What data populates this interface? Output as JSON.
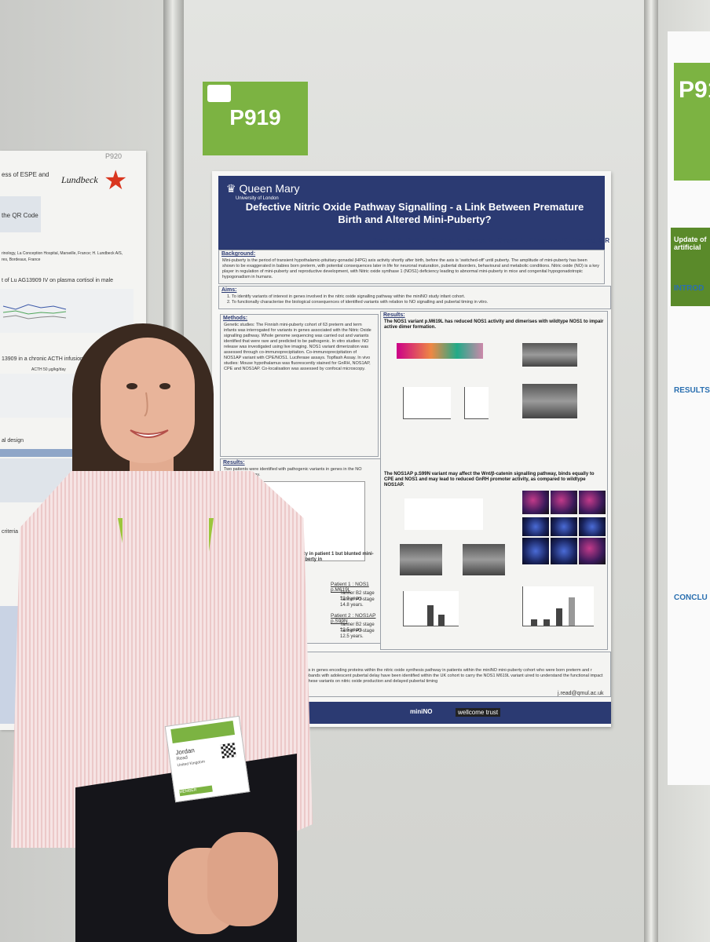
{
  "tag": {
    "label": "P919"
  },
  "left_poster": {
    "id": "P920",
    "logo": "Lundbeck",
    "lines": [
      "ess of ESPE and",
      "the QR Code",
      "rinology, La Conception Hospital, Marseille, France; H. Lundbeck A/S,",
      "res, Bordeaux, France",
      "t of Lu AG13909 IV on plasma cortisol in male",
      "13909 in a chronic ACTH infusion model",
      "ACTH 50 μg/kg/day",
      "al design",
      "criteria"
    ]
  },
  "poster": {
    "institution": "Queen Mary",
    "institution_sub": "University of London",
    "title": "Defective Nitric Oxide Pathway Signalling - a Link Between Premature Birth and Altered Mini-Puberty?",
    "authors": "Read, J.E., Delli, V., Dunkel, L., Prevot, V., Guasti, L., Chachlaki, K., Howard, S.R",
    "background_heading": "Background:",
    "background_text": "Mini-puberty is the period of transient hypothalamic-pituitary-gonadal (HPG) axis activity shortly after birth, before the axis is 'switched-off' until puberty. The amplitude of mini-puberty has been shown to be exaggerated in babies born preterm, with potential consequences later in life for neuronal maturation, pubertal disorders, behavioural and metabolic conditions. Nitric oxide (NO) is a key player in regulation of mini-puberty and reproductive development, with Nitric oxide synthase 1 (NOS1) deficiency leading to abnormal mini-puberty in mice and congenital hypogonadotropic hypogonadism in humans.",
    "aims_heading": "Aims:",
    "aims": [
      "1.   To identify variants of interest in genes involved in the nitric oxide signalling pathway within the miniNO study infant cohort.",
      "2.   To functionally characterise the biological consequences of identified variants with relation to NO signalling and pubertal timing in vitro."
    ],
    "methods_heading": "Methods:",
    "methods_text": "Genetic studies: The Finnish mini-puberty cohort of 63 preterm and term infants was interrogated for variants in genes associated with the Nitric Oxide signalling pathway. Whole genome sequencing was carried out and variants identified that were rare and predicted to be pathogenic. In vitro studies: NO release was investigated using live imaging. NOS1 variant dimerization was assessed through co-immunoprecipitation. Co-immunoprecipitation of NOS1AP variant with CPE/NOS1. Luciferase assays. Topflash Assay. In vivo studies: Mouse hypothalamus was fluorescently stained for GnRH, NOS1AP, CPE and NOS1AP. Co-localisation was assessed by confocal microscopy.",
    "results_heading": "Results:",
    "results_text": "Two patients were identified with pathogenic variants in genes in the NO signalling pathway.",
    "results_right_heading": "Results:",
    "nos1_heading": "The NOS1 variant p.M619L has reduced NOS1 activity and dimerises with wildtype NOS1 to impair active dimer formation.",
    "nos1ap_heading": "The NOS1AP p.S99N variant may affect the Wnt/β-catenin signalling pathway, binds equally to CPE and NOS1 and may lead to reduced GnRH promoter activity, as compared to wildtype NOS1AP.",
    "blunted": "erty in patient 1 but blunted mini-puberty in",
    "patient1": "Patient 1 : NOS1 p.M619L",
    "patient1_b2": "Tanner B2 stage 12.9 years.",
    "patient1_p2": "Tanner P2 stage 14.8 years.",
    "patient2": "Patient 2 : NOS1AP p.S99N",
    "patient2_b2": "Tanner B2 stage 12.5 years.",
    "patient2_p2": "Tanner P2 stage 12.5 years.",
    "conclusion": "ants in genes encoding proteins within the nitric oxide synthesis pathway in patients within the miniNO mini-puberty cohort who were born preterm and r probands with adolescent pubertal delay have been identified within the UK cohort to carry the NOS1 M619L variant uired to understand the functional impact of these variants on nitric oxide production and delayed pubertal timing",
    "email": "j.read@qmul.ac.uk",
    "funders": [
      "wellcome trust",
      "miniNO"
    ]
  },
  "right_poster": {
    "code": "P91",
    "sections": [
      "INTROD",
      "RESULTS",
      "CONCLU"
    ],
    "update_text": "Update of artificial"
  },
  "badge": {
    "first_name": "Jordan",
    "last_name": "Read",
    "country": "United Kingdom",
    "role": "MEMBER"
  }
}
